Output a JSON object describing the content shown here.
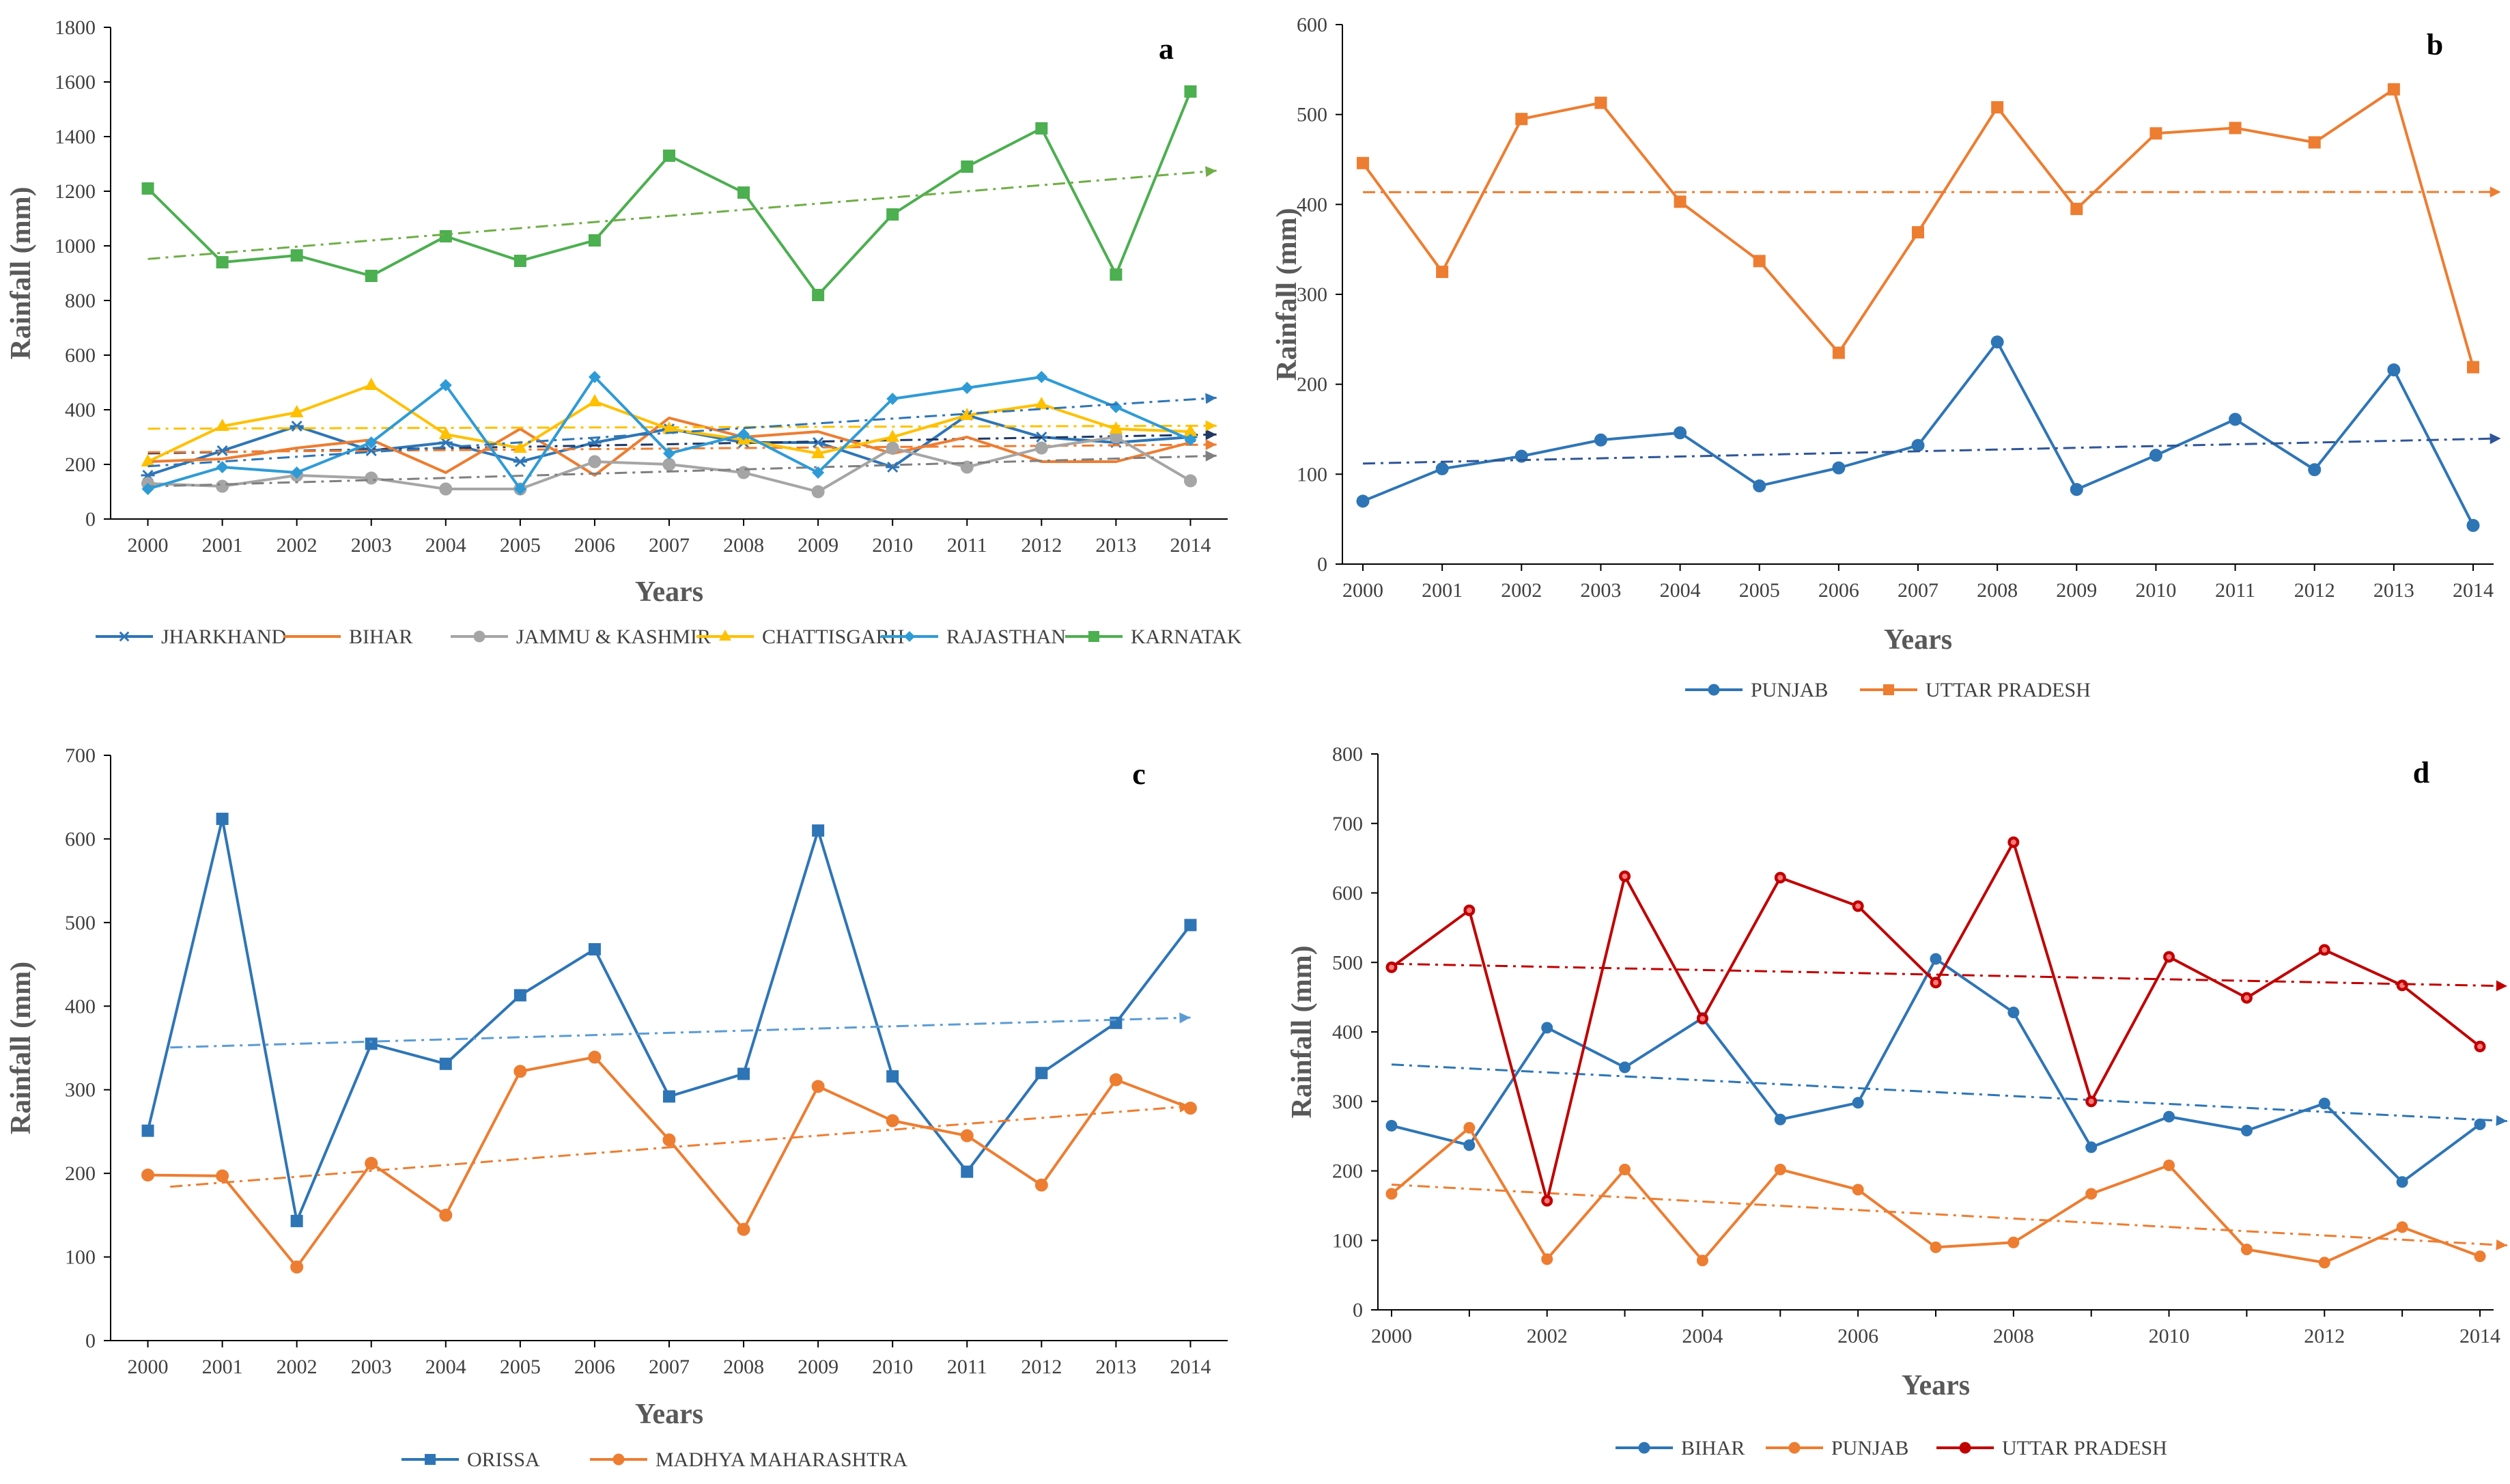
{
  "chart_data": [
    {
      "id": "a",
      "type": "line",
      "panel_label": "a",
      "xlabel": "Years",
      "ylabel": "Rainfall (mm)",
      "ylim": [
        0,
        1800
      ],
      "yticks": [
        0,
        200,
        400,
        600,
        800,
        1000,
        1200,
        1400,
        1600,
        1800
      ],
      "x": [
        2000,
        2001,
        2002,
        2003,
        2004,
        2005,
        2006,
        2007,
        2008,
        2009,
        2010,
        2011,
        2012,
        2013,
        2014
      ],
      "xtick_labels": [
        "2000",
        "2001",
        "2002",
        "2003",
        "2004",
        "2005",
        "2006",
        "2007",
        "2008",
        "2009",
        "2010",
        "2011",
        "2012",
        "2013",
        "2014"
      ],
      "legend_position": "bottom",
      "series": [
        {
          "name": "JHARKHAND",
          "color": "#2E75B6",
          "marker": "star",
          "trend_color": "#1F3864",
          "values": [
            160,
            250,
            340,
            250,
            280,
            210,
            280,
            330,
            280,
            280,
            190,
            380,
            300,
            280,
            300
          ]
        },
        {
          "name": "BIHAR",
          "color": "#ED7D31",
          "marker": "none",
          "trend_color": "#ED7D31",
          "values": [
            210,
            220,
            260,
            290,
            170,
            330,
            160,
            370,
            300,
            320,
            240,
            300,
            210,
            210,
            280
          ]
        },
        {
          "name": "JAMMU & KASHMIR",
          "color": "#A5A5A5",
          "marker": "circle",
          "trend_color": "#7F7F7F",
          "values": [
            130,
            120,
            160,
            150,
            110,
            110,
            210,
            200,
            170,
            100,
            260,
            190,
            260,
            300,
            140
          ]
        },
        {
          "name": "CHATTISGARH",
          "color": "#FFC000",
          "marker": "triangle",
          "trend_color": "#FFC000",
          "values": [
            210,
            340,
            390,
            490,
            310,
            260,
            430,
            330,
            290,
            240,
            300,
            380,
            420,
            330,
            320
          ]
        },
        {
          "name": "RAJASTHAN",
          "color": "#2E9BD6",
          "marker": "diamond",
          "trend_color": "#2E75B6",
          "values": [
            110,
            190,
            170,
            280,
            490,
            110,
            520,
            240,
            310,
            170,
            440,
            480,
            520,
            410,
            290
          ]
        },
        {
          "name": "KARNATAK",
          "color": "#4CAF50",
          "marker": "square",
          "trend_color": "#70AD47",
          "values": [
            1210,
            940,
            965,
            890,
            1035,
            945,
            1020,
            1330,
            1195,
            820,
            1115,
            1290,
            1430,
            895,
            1565
          ]
        }
      ]
    },
    {
      "id": "b",
      "type": "line",
      "panel_label": "b",
      "xlabel": "Years",
      "ylabel": "Rainfall (mm)",
      "ylim": [
        0,
        600
      ],
      "yticks": [
        0,
        100,
        200,
        300,
        400,
        500,
        600
      ],
      "x": [
        2000,
        2001,
        2002,
        2003,
        2004,
        2005,
        2006,
        2007,
        2008,
        2009,
        2010,
        2011,
        2012,
        2013,
        2014
      ],
      "xtick_labels": [
        "2000",
        "2001",
        "2002",
        "2003",
        "2004",
        "2005",
        "2006",
        "2007",
        "2008",
        "2009",
        "2010",
        "2011",
        "2012",
        "2013",
        "2014"
      ],
      "legend_position": "bottom",
      "series": [
        {
          "name": "PUNJAB",
          "color": "#2E75B6",
          "marker": "circle",
          "trend_color": "#2F5597",
          "values": [
            70,
            106,
            120,
            138,
            146,
            87,
            107,
            132,
            247,
            83,
            121,
            161,
            105,
            216,
            43
          ]
        },
        {
          "name": "UTTAR PRADESH",
          "color": "#ED7D31",
          "marker": "square",
          "trend_color": "#ED7D31",
          "values": [
            446,
            325,
            495,
            513,
            403,
            337,
            235,
            369,
            508,
            395,
            479,
            485,
            469,
            528,
            219
          ]
        }
      ]
    },
    {
      "id": "c",
      "type": "line",
      "panel_label": "c",
      "xlabel": "Years",
      "ylabel": "Rainfall (mm)",
      "ylim": [
        0,
        700
      ],
      "yticks": [
        0,
        100,
        200,
        300,
        400,
        500,
        600,
        700
      ],
      "x": [
        2000,
        2001,
        2002,
        2003,
        2004,
        2005,
        2006,
        2007,
        2008,
        2009,
        2010,
        2011,
        2012,
        2013,
        2014
      ],
      "xtick_labels": [
        "2000",
        "2001",
        "2002",
        "2003",
        "2004",
        "2005",
        "2006",
        "2007",
        "2008",
        "2009",
        "2010",
        "2011",
        "2012",
        "2013",
        "2014"
      ],
      "legend_position": "bottom",
      "series": [
        {
          "name": "ORISSA",
          "color": "#2E75B6",
          "marker": "square",
          "trend_color": "#5B9BD5",
          "values": [
            251,
            624,
            143,
            355,
            331,
            413,
            468,
            292,
            319,
            610,
            316,
            202,
            320,
            380,
            497
          ]
        },
        {
          "name": "MADHYA MAHARASHTRA",
          "color": "#ED7D31",
          "marker": "circle",
          "trend_color": "#ED7D31",
          "values": [
            198,
            197,
            88,
            212,
            150,
            322,
            339,
            240,
            133,
            304,
            263,
            245,
            186,
            312,
            278
          ]
        }
      ]
    },
    {
      "id": "d",
      "type": "line",
      "panel_label": "d",
      "xlabel": "Years",
      "ylabel": "Rainfall (mm)",
      "ylim": [
        0,
        800
      ],
      "yticks": [
        0,
        100,
        200,
        300,
        400,
        500,
        600,
        700,
        800
      ],
      "x": [
        2000,
        2001,
        2002,
        2003,
        2004,
        2005,
        2006,
        2007,
        2008,
        2009,
        2010,
        2011,
        2012,
        2013,
        2014
      ],
      "xtick_labels": [
        "2000",
        "",
        "2002",
        "",
        "2004",
        "",
        "2006",
        "",
        "2008",
        "",
        "2010",
        "",
        "2012",
        "",
        "2014"
      ],
      "legend_position": "bottom",
      "series": [
        {
          "name": "BIHAR",
          "color": "#2E75B6",
          "marker": "circle",
          "trend_color": "#2E75B6",
          "values": [
            265,
            237,
            406,
            349,
            420,
            274,
            298,
            505,
            428,
            234,
            278,
            258,
            297,
            184,
            267
          ]
        },
        {
          "name": "PUNJAB",
          "color": "#ED7D31",
          "marker": "circle",
          "trend_color": "#ED7D31",
          "values": [
            167,
            262,
            73,
            202,
            71,
            202,
            173,
            90,
            97,
            167,
            208,
            87,
            68,
            119,
            77
          ]
        },
        {
          "name": "UTTAR PRADESH",
          "color": "#C00000",
          "marker": "circle",
          "trend_color": "#C00000",
          "values": [
            493,
            575,
            157,
            624,
            419,
            622,
            581,
            471,
            673,
            300,
            508,
            449,
            518,
            467,
            379
          ]
        }
      ]
    }
  ]
}
